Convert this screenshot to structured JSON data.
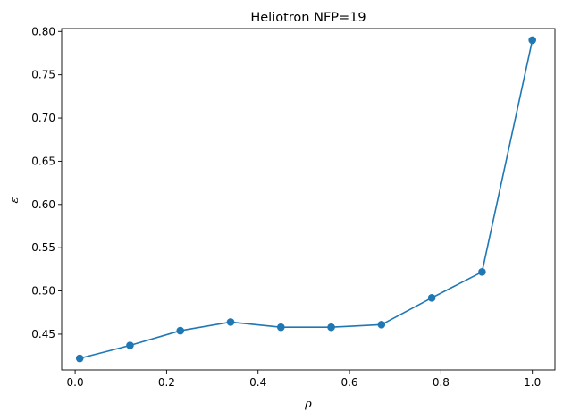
{
  "chart_data": {
    "type": "line",
    "title": "Heliotron NFP=19",
    "xlabel": "ρ",
    "ylabel": "ε",
    "x": [
      0.01,
      0.12,
      0.23,
      0.34,
      0.45,
      0.56,
      0.67,
      0.78,
      0.89,
      1.0
    ],
    "series": [
      {
        "values": [
          0.422,
          0.437,
          0.454,
          0.464,
          0.458,
          0.458,
          0.461,
          0.492,
          0.522,
          0.79
        ],
        "color": "#1f77b4",
        "marker": "circle"
      }
    ],
    "xlim": [
      -0.0295,
      1.0495
    ],
    "ylim": [
      0.4086,
      0.8034
    ],
    "x_ticks": [
      {
        "value": 0.0,
        "label": "0.0"
      },
      {
        "value": 0.2,
        "label": "0.2"
      },
      {
        "value": 0.4,
        "label": "0.4"
      },
      {
        "value": 0.6,
        "label": "0.6"
      },
      {
        "value": 0.8,
        "label": "0.8"
      },
      {
        "value": 1.0,
        "label": "1.0"
      }
    ],
    "y_ticks": [
      {
        "value": 0.45,
        "label": "0.45"
      },
      {
        "value": 0.5,
        "label": "0.50"
      },
      {
        "value": 0.55,
        "label": "0.55"
      },
      {
        "value": 0.6,
        "label": "0.60"
      },
      {
        "value": 0.65,
        "label": "0.65"
      },
      {
        "value": 0.7,
        "label": "0.70"
      },
      {
        "value": 0.75,
        "label": "0.75"
      },
      {
        "value": 0.8,
        "label": "0.80"
      }
    ],
    "grid": false,
    "legend": "none"
  }
}
